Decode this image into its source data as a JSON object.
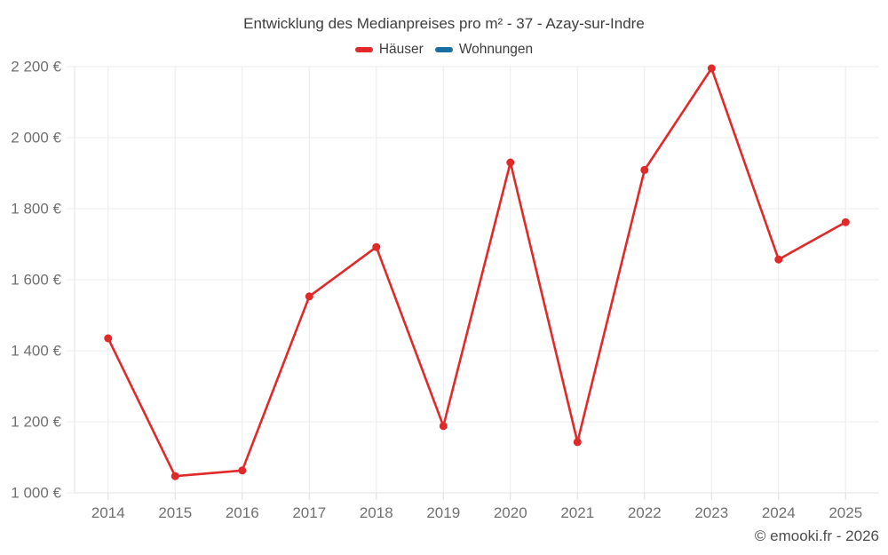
{
  "chart_data": {
    "type": "line",
    "title": "Entwicklung des Medianpreises pro m² - 37 - Azay-sur-Indre",
    "categories": [
      "2014",
      "2015",
      "2016",
      "2017",
      "2018",
      "2019",
      "2020",
      "2021",
      "2022",
      "2023",
      "2024",
      "2025"
    ],
    "series": [
      {
        "name": "Häuser",
        "color": "#e12929",
        "values": [
          1435,
          1047,
          1063,
          1553,
          1692,
          1188,
          1930,
          1143,
          1909,
          2195,
          1657,
          1762
        ]
      },
      {
        "name": "Wohnungen",
        "color": "#186fa5",
        "values": []
      }
    ],
    "xlabel": "",
    "ylabel": "",
    "ylim": [
      1000,
      2200
    ],
    "ytick_step": 200,
    "ytick_labels": [
      "1 000 €",
      "1 200 €",
      "1 400 €",
      "1 600 €",
      "1 800 €",
      "2 000 €",
      "2 200 €"
    ],
    "grid": true,
    "legend_position": "top"
  },
  "footer": {
    "copyright": "© emooki.fr - 2026"
  },
  "colors": {
    "background": "#ffffff",
    "grid": "#ebebeb",
    "axis": "#e3e3e3",
    "tick": "#dcdcdc",
    "axis_label": "#707070",
    "title_text": "#3e3e3e",
    "footer_text": "#4d4d4d"
  }
}
